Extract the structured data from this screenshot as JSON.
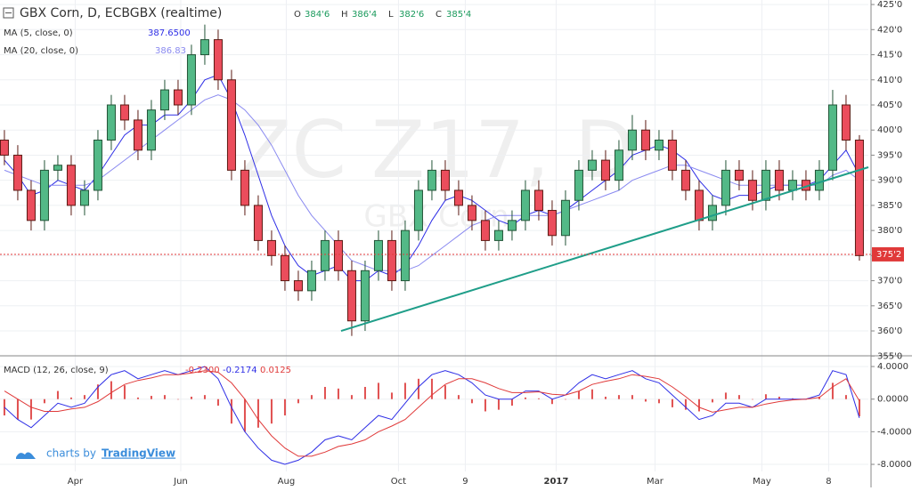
{
  "chart_data": {
    "type": "candlestick",
    "title": "GBX Corn, D, ECBGBX (realtime)",
    "watermark": "ZC Z17, D",
    "watermark_subtitle": "GBX Corn",
    "branding": {
      "prefix": "charts by",
      "name": "TradingView"
    },
    "ohlc_readout": [
      {
        "name": "O",
        "value": 384.75,
        "label": "384'6"
      },
      {
        "name": "H",
        "value": 386.5,
        "label": "386'4"
      },
      {
        "name": "L",
        "value": 382.75,
        "label": "382'6"
      },
      {
        "name": "C",
        "value": 385.5,
        "label": "385'4"
      }
    ],
    "xlim": [
      -0.33,
      64.67
    ],
    "xticks": [
      {
        "value": 5.3,
        "label": "Apr"
      },
      {
        "value": 13.2,
        "label": "Jun"
      },
      {
        "value": 21.1,
        "label": "Aug"
      },
      {
        "value": 29.5,
        "label": "Oct"
      },
      {
        "value": 34.5,
        "label": "9"
      },
      {
        "value": 41.3,
        "label": "2017"
      },
      {
        "value": 48.7,
        "label": "Mar"
      },
      {
        "value": 56.7,
        "label": "May"
      },
      {
        "value": 61.7,
        "label": "8"
      }
    ],
    "ylim": [
      355.4,
      425.9
    ],
    "yticks": [
      {
        "value": 425,
        "label": "425'0"
      },
      {
        "value": 420,
        "label": "420'0"
      },
      {
        "value": 415,
        "label": "415'0"
      },
      {
        "value": 410,
        "label": "410'0"
      },
      {
        "value": 405,
        "label": "405'0"
      },
      {
        "value": 400,
        "label": "400'0"
      },
      {
        "value": 395,
        "label": "395'0"
      },
      {
        "value": 390,
        "label": "390'0"
      },
      {
        "value": 385,
        "label": "385'0"
      },
      {
        "value": 380,
        "label": "380'0"
      },
      {
        "value": 375,
        "label": "375'0"
      },
      {
        "value": 370,
        "label": "370'0"
      },
      {
        "value": 365,
        "label": "365'0"
      },
      {
        "value": 360,
        "label": "360'0"
      },
      {
        "value": 355,
        "label": "355'0"
      }
    ],
    "up_color": "#53b987",
    "down_color": "#eb4d5c",
    "open": [
      398,
      395,
      388,
      382,
      392,
      393,
      385,
      388,
      398,
      405,
      402,
      396,
      404,
      408,
      405,
      415,
      418,
      410,
      392,
      385,
      378,
      375,
      370,
      368,
      372,
      378,
      372,
      362,
      372,
      378,
      370,
      380,
      388,
      392,
      388,
      385,
      382,
      378,
      380,
      382,
      388,
      384,
      379,
      386,
      392,
      394,
      390,
      396,
      400,
      396,
      398,
      392,
      388,
      382,
      385,
      392,
      390,
      386,
      392,
      388,
      390,
      388,
      392,
      405,
      398
    ],
    "high": [
      400,
      397,
      390,
      394,
      395,
      395,
      390,
      400,
      407,
      407,
      404,
      406,
      410,
      410,
      417,
      421,
      420,
      412,
      394,
      387,
      380,
      377,
      372,
      374,
      380,
      380,
      374,
      374,
      380,
      380,
      382,
      390,
      394,
      394,
      390,
      387,
      384,
      382,
      384,
      390,
      390,
      386,
      388,
      394,
      396,
      396,
      398,
      403,
      402,
      400,
      400,
      394,
      390,
      387,
      394,
      394,
      392,
      394,
      394,
      392,
      392,
      394,
      408,
      407,
      399
    ],
    "low": [
      393,
      386,
      380,
      380,
      390,
      383,
      383,
      386,
      396,
      400,
      394,
      394,
      402,
      403,
      403,
      413,
      408,
      390,
      383,
      376,
      373,
      368,
      366,
      366,
      370,
      370,
      359,
      360,
      370,
      368,
      368,
      378,
      386,
      386,
      383,
      380,
      376,
      376,
      378,
      380,
      382,
      377,
      377,
      384,
      390,
      388,
      388,
      394,
      394,
      394,
      390,
      386,
      380,
      380,
      383,
      388,
      384,
      384,
      386,
      386,
      386,
      386,
      390,
      396,
      374
    ],
    "close": [
      395,
      388,
      382,
      392,
      393,
      385,
      388,
      398,
      405,
      402,
      396,
      404,
      408,
      405,
      415,
      418,
      410,
      392,
      385,
      378,
      375,
      370,
      368,
      372,
      378,
      372,
      362,
      372,
      378,
      370,
      380,
      388,
      392,
      388,
      385,
      382,
      378,
      380,
      382,
      388,
      384,
      379,
      386,
      392,
      394,
      390,
      396,
      400,
      396,
      398,
      392,
      388,
      382,
      385,
      392,
      390,
      386,
      392,
      388,
      390,
      388,
      392,
      405,
      398,
      375
    ],
    "last_price": {
      "value": 375.25,
      "label": "375'2",
      "color": "#e03a3a"
    },
    "series": [
      {
        "name": "MA (5, close, 0)",
        "color": "#2e2ee6",
        "last": {
          "value": 387.65,
          "label": "387.6500"
        },
        "values": [
          394,
          391,
          387,
          388,
          390,
          389,
          388,
          391,
          395,
          399,
          401,
          401,
          403,
          403,
          406,
          410,
          411,
          406,
          399,
          391,
          383,
          377,
          373,
          371,
          372,
          373,
          370,
          370,
          372,
          371,
          373,
          377,
          382,
          386,
          387,
          386,
          384,
          382,
          381,
          383,
          384,
          383,
          384,
          386,
          388,
          390,
          392,
          395,
          396,
          397,
          396,
          394,
          390,
          387,
          386,
          387,
          387,
          388,
          389,
          389,
          389,
          390,
          393,
          396,
          391
        ]
      },
      {
        "name": "MA (20, close, 0)",
        "color": "#8a8af0",
        "last": {
          "value": 386.83,
          "label": "386.83"
        },
        "values": [
          392,
          391,
          390,
          389,
          389,
          389,
          389,
          390,
          392,
          394,
          396,
          398,
          400,
          402,
          404,
          406,
          407,
          406,
          404,
          401,
          397,
          392,
          387,
          383,
          380,
          377,
          374,
          373,
          372,
          372,
          372,
          373,
          375,
          377,
          379,
          381,
          382,
          383,
          383,
          383,
          383,
          383,
          384,
          385,
          386,
          387,
          388,
          390,
          391,
          392,
          393,
          393,
          392,
          391,
          390,
          389,
          389,
          389,
          389,
          389,
          389,
          389,
          391,
          392,
          390
        ]
      }
    ],
    "trendline": {
      "color": "#1f9e89",
      "x": [
        25.2,
        64.67
      ],
      "y": [
        360,
        392.6
      ]
    },
    "macd": {
      "name": "MACD (12, 26, close, 9)",
      "ylim": [
        -8.87,
        5.1
      ],
      "yticks": [
        {
          "value": 4,
          "label": "4.0000"
        },
        {
          "value": 0,
          "label": "0.0000"
        },
        {
          "value": -4,
          "label": "-4.0000"
        },
        {
          "value": -8,
          "label": "-8.0000"
        }
      ],
      "readout": [
        {
          "value": -0.23,
          "label": "-0.2300",
          "color": "#e03a3a"
        },
        {
          "value": -0.2174,
          "label": "-0.2174",
          "color": "#2e2ee6"
        },
        {
          "value": 0.0125,
          "label": "0.0125",
          "color": "#e03a3a"
        }
      ],
      "histogram": {
        "color": "#e05050",
        "values": [
          -2,
          -2.5,
          -2.5,
          -0.5,
          1,
          0.2,
          0.5,
          1.8,
          2.2,
          1.7,
          0.2,
          0.4,
          0.5,
          0,
          0.3,
          0.5,
          -0.8,
          -3,
          -4,
          -3.5,
          -3,
          -2,
          -0.5,
          0.5,
          1.5,
          1.3,
          0.5,
          1.5,
          2,
          0.8,
          2,
          2.5,
          2.5,
          1.7,
          0.5,
          -0.5,
          -1.5,
          -1.3,
          -0.8,
          0.2,
          0.1,
          -0.6,
          0,
          1,
          1.2,
          0.3,
          0.5,
          0.5,
          -0.3,
          -0.5,
          -1,
          -1.3,
          -1.5,
          -0.4,
          0.8,
          0.5,
          0,
          0.6,
          0.3,
          0.1,
          0,
          0.3,
          2,
          0.5,
          -2.1
        ]
      },
      "macd_line": {
        "color": "#2e2ee6",
        "values": [
          -1,
          -2.5,
          -3.5,
          -2,
          -0.5,
          -1,
          -0.5,
          1.5,
          3,
          3.5,
          2.5,
          3,
          3.5,
          3,
          3.5,
          4,
          2.5,
          -1,
          -4,
          -6,
          -7.5,
          -8,
          -7.5,
          -6.5,
          -5,
          -4.5,
          -5,
          -3.5,
          -2,
          -2.5,
          -0.5,
          1.5,
          3,
          3.5,
          3,
          2,
          0.5,
          0,
          0,
          1,
          1,
          0,
          0.5,
          2,
          3,
          2.5,
          3,
          3.5,
          2.5,
          2,
          0.5,
          -1,
          -2.5,
          -2,
          -0.5,
          -0.5,
          -1,
          0,
          0,
          0,
          0,
          0.5,
          3.5,
          3,
          -2.3
        ]
      },
      "signal_line": {
        "color": "#e03a3a",
        "values": [
          1,
          0,
          -1,
          -1.5,
          -1.5,
          -1.2,
          -1,
          -0.3,
          0.8,
          1.8,
          2.3,
          2.6,
          3,
          3,
          3.2,
          3.5,
          3.3,
          2,
          0,
          -2.5,
          -4.5,
          -6,
          -7,
          -7,
          -6.5,
          -5.8,
          -5.5,
          -5,
          -4,
          -3.3,
          -2.5,
          -1,
          0.5,
          1.8,
          2.5,
          2.5,
          2,
          1.3,
          0.8,
          0.8,
          0.9,
          0.6,
          0.5,
          1,
          1.8,
          2.2,
          2.5,
          3,
          2.8,
          2.5,
          1.5,
          0.3,
          -1,
          -1.6,
          -1.3,
          -1,
          -1,
          -0.6,
          -0.3,
          -0.1,
          0,
          0.2,
          1.5,
          2.5,
          -0.2
        ]
      }
    }
  }
}
